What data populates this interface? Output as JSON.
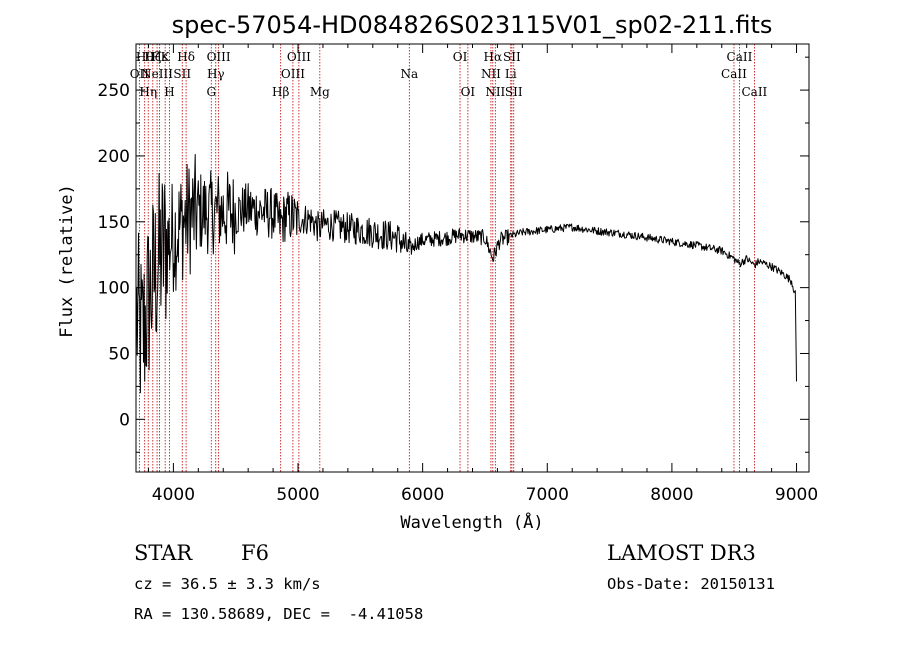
{
  "chart_data": {
    "type": "line",
    "title": "spec-57054-HD084826S023115V01_sp02-211.fits",
    "xlabel": "Wavelength (Å)",
    "ylabel": "Flux (relative)",
    "xlim": [
      3700,
      9100
    ],
    "ylim": [
      -40,
      285
    ],
    "xticks": [
      4000,
      5000,
      6000,
      7000,
      8000,
      9000
    ],
    "yticks": [
      0,
      50,
      100,
      150,
      200,
      250
    ],
    "x_tick_labels": [
      "4000",
      "5000",
      "6000",
      "7000",
      "8000",
      "9000"
    ],
    "y_tick_labels": [
      "0",
      "50",
      "100",
      "150",
      "200",
      "250"
    ],
    "spectrum_anchors": [
      [
        3700,
        80
      ],
      [
        3750,
        60
      ],
      [
        3800,
        90
      ],
      [
        3850,
        110
      ],
      [
        3900,
        125
      ],
      [
        4000,
        140
      ],
      [
        4100,
        152
      ],
      [
        4200,
        158
      ],
      [
        4300,
        157
      ],
      [
        4400,
        158
      ],
      [
        4500,
        157
      ],
      [
        4600,
        160
      ],
      [
        4700,
        158
      ],
      [
        4800,
        156
      ],
      [
        4860,
        148
      ],
      [
        4900,
        155
      ],
      [
        5000,
        152
      ],
      [
        5100,
        152
      ],
      [
        5170,
        145
      ],
      [
        5200,
        148
      ],
      [
        5300,
        147
      ],
      [
        5400,
        145
      ],
      [
        5500,
        144
      ],
      [
        5600,
        142
      ],
      [
        5700,
        140
      ],
      [
        5800,
        138
      ],
      [
        5893,
        128
      ],
      [
        5950,
        134
      ],
      [
        6000,
        136
      ],
      [
        6200,
        138
      ],
      [
        6300,
        140
      ],
      [
        6400,
        139
      ],
      [
        6500,
        138
      ],
      [
        6563,
        122
      ],
      [
        6620,
        136
      ],
      [
        6700,
        139
      ],
      [
        6800,
        142
      ],
      [
        7000,
        144
      ],
      [
        7200,
        146
      ],
      [
        7400,
        143
      ],
      [
        7600,
        141
      ],
      [
        7800,
        138
      ],
      [
        8000,
        135
      ],
      [
        8200,
        132
      ],
      [
        8400,
        128
      ],
      [
        8498,
        122
      ],
      [
        8542,
        118
      ],
      [
        8600,
        122
      ],
      [
        8662,
        117
      ],
      [
        8700,
        120
      ],
      [
        8800,
        116
      ],
      [
        8900,
        110
      ],
      [
        8960,
        105
      ],
      [
        8990,
        95
      ],
      [
        9000,
        30
      ]
    ],
    "emission_lines": [
      {
        "wl": 3727,
        "label": "OII",
        "row": 2
      },
      {
        "wl": 3770,
        "label": "Hθ",
        "row": 1
      },
      {
        "wl": 3798,
        "label": "Hη",
        "row": 3
      },
      {
        "wl": 3835,
        "label": "Hζ",
        "row": 1
      },
      {
        "wl": 3869,
        "label": "NeIII",
        "row": 2
      },
      {
        "wl": 3889,
        "label": "Hε",
        "row": 1
      },
      {
        "wl": 3934,
        "label": "K",
        "row": 1
      },
      {
        "wl": 3969,
        "label": "H",
        "row": 3
      },
      {
        "wl": 4071,
        "label": "SII",
        "row": 2
      },
      {
        "wl": 4102,
        "label": "Hδ",
        "row": 1
      },
      {
        "wl": 4304,
        "label": "G",
        "row": 3
      },
      {
        "wl": 4340,
        "label": "Hγ",
        "row": 2
      },
      {
        "wl": 4363,
        "label": "OIII",
        "row": 1
      },
      {
        "wl": 4861,
        "label": "Hβ",
        "row": 3
      },
      {
        "wl": 4959,
        "label": "OIII",
        "row": 2
      },
      {
        "wl": 5007,
        "label": "OIII",
        "row": 1
      },
      {
        "wl": 5175,
        "label": "Mg",
        "row": 3
      },
      {
        "wl": 5893,
        "label": "Na",
        "row": 2
      },
      {
        "wl": 6300,
        "label": "OI",
        "row": 1
      },
      {
        "wl": 6363,
        "label": "OI",
        "row": 3
      },
      {
        "wl": 6548,
        "label": "NII",
        "row": 2
      },
      {
        "wl": 6563,
        "label": "Hα",
        "row": 1
      },
      {
        "wl": 6583,
        "label": "NII",
        "row": 3
      },
      {
        "wl": 6707,
        "label": "Li",
        "row": 2
      },
      {
        "wl": 6716,
        "label": "SII",
        "row": 1
      },
      {
        "wl": 6731,
        "label": "SII",
        "row": 3
      },
      {
        "wl": 8498,
        "label": "CaII",
        "row": 2
      },
      {
        "wl": 8542,
        "label": "CaII",
        "row": 1
      },
      {
        "wl": 8662,
        "label": "CaII",
        "row": 3
      }
    ]
  },
  "info": {
    "class": "STAR",
    "subclass": "F6",
    "survey": "LAMOST DR3",
    "redshift": "cz = 36.5 ± 3.3 km/s",
    "obs_date": "Obs-Date: 20150131",
    "coords": "RA = 130.58689, DEC =  -4.41058"
  }
}
